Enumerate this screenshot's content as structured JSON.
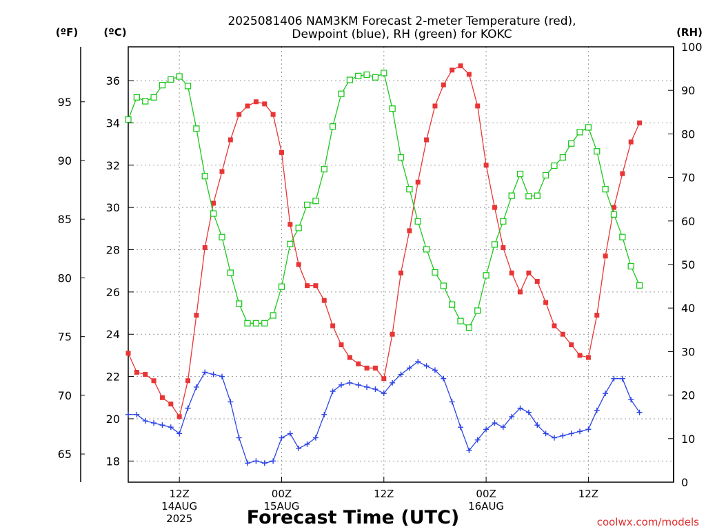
{
  "chart_data": {
    "type": "line",
    "title_line1": "2025081406 NAM3KM Forecast 2-meter Temperature (red),",
    "title_line2": "Dewpoint (blue), RH (green) for KOKC",
    "xlabel": "Forecast Time (UTC)",
    "credit": "coolwx.com/models",
    "x_hours": [
      6,
      7,
      8,
      9,
      10,
      11,
      12,
      13,
      14,
      15,
      16,
      17,
      18,
      19,
      20,
      21,
      22,
      23,
      24,
      25,
      26,
      27,
      28,
      29,
      30,
      31,
      32,
      33,
      34,
      35,
      36,
      37,
      38,
      39,
      40,
      41,
      42,
      43,
      44,
      45,
      46,
      47,
      48,
      49,
      50,
      51,
      52,
      53,
      54,
      55,
      56,
      57,
      58,
      59,
      60,
      61,
      62,
      63,
      64,
      65,
      66,
      67,
      68,
      69,
      70
    ],
    "x_range_hours": [
      6,
      70
    ],
    "x_ticks": [
      {
        "hour": 12,
        "lines": [
          "12Z",
          "14AUG",
          "2025"
        ]
      },
      {
        "hour": 24,
        "lines": [
          "00Z",
          "15AUG"
        ]
      },
      {
        "hour": 36,
        "lines": [
          "12Z"
        ]
      },
      {
        "hour": 48,
        "lines": [
          "00Z",
          "16AUG"
        ]
      },
      {
        "hour": 60,
        "lines": [
          "12Z"
        ]
      }
    ],
    "axes": {
      "celsius": {
        "label": "(ºC)",
        "range": [
          17.0,
          37.6
        ],
        "ticks": [
          18,
          20,
          22,
          24,
          26,
          28,
          30,
          32,
          34,
          36
        ]
      },
      "fahrenheit": {
        "label": "(ºF)",
        "ticks": [
          65,
          70,
          75,
          80,
          85,
          90,
          95
        ]
      },
      "rh": {
        "label": "(RH)",
        "range": [
          0,
          100
        ],
        "ticks": [
          0,
          10,
          20,
          30,
          40,
          50,
          60,
          70,
          80,
          90,
          100
        ]
      }
    },
    "grid": true,
    "series": [
      {
        "key": "temperature",
        "unit": "C",
        "color": "#e83535",
        "marker": "filled-square",
        "values": [
          23.1,
          22.2,
          22.1,
          21.8,
          21.0,
          20.7,
          20.1,
          21.8,
          24.9,
          28.1,
          30.2,
          31.7,
          33.2,
          34.4,
          34.8,
          35.0,
          34.9,
          34.4,
          32.6,
          29.2,
          27.3,
          26.3,
          26.3,
          25.6,
          24.4,
          23.5,
          22.9,
          22.6,
          22.4,
          22.4,
          21.9,
          24.0,
          26.9,
          28.9,
          31.2,
          33.2,
          34.8,
          35.8,
          36.5,
          36.7,
          36.3,
          34.8,
          32.0,
          30.0,
          28.1,
          26.9,
          26.0,
          26.9,
          26.5,
          25.5,
          24.4,
          24.0,
          23.5,
          23.0,
          22.9,
          24.9,
          27.7,
          30.0,
          31.6,
          33.1,
          34.0
        ]
      },
      {
        "key": "dewpoint",
        "unit": "C",
        "color": "#2b43e6",
        "marker": "plus",
        "values": [
          20.2,
          20.2,
          19.9,
          19.8,
          19.7,
          19.6,
          19.3,
          20.5,
          21.5,
          22.2,
          22.1,
          22.0,
          20.8,
          19.1,
          17.9,
          18.0,
          17.9,
          18.0,
          19.1,
          19.3,
          18.6,
          18.8,
          19.1,
          20.2,
          21.3,
          21.6,
          21.7,
          21.6,
          21.5,
          21.4,
          21.2,
          21.7,
          22.1,
          22.4,
          22.7,
          22.5,
          22.3,
          21.9,
          20.8,
          19.6,
          18.5,
          19.0,
          19.5,
          19.8,
          19.6,
          20.1,
          20.5,
          20.3,
          19.7,
          19.3,
          19.1,
          19.2,
          19.3,
          19.4,
          19.5,
          20.4,
          21.2,
          21.9,
          21.9,
          20.9,
          20.3
        ]
      },
      {
        "key": "rh",
        "unit": "%",
        "color": "#1ec81e",
        "marker": "open-square",
        "values": [
          83.3,
          88.4,
          87.5,
          88.4,
          91.2,
          92.5,
          93.2,
          91.0,
          81.2,
          70.3,
          61.7,
          56.3,
          48.1,
          41.0,
          36.5,
          36.5,
          36.5,
          38.3,
          44.9,
          54.7,
          58.4,
          63.7,
          64.6,
          71.9,
          81.7,
          89.2,
          92.4,
          93.3,
          93.6,
          93.0,
          94.0,
          85.8,
          74.6,
          67.3,
          59.9,
          53.5,
          48.2,
          45.1,
          40.8,
          37.0,
          35.5,
          39.4,
          47.5,
          54.6,
          59.9,
          65.8,
          70.8,
          65.7,
          65.8,
          70.5,
          72.7,
          74.6,
          77.8,
          80.4,
          81.5,
          76.0,
          67.3,
          61.5,
          56.3,
          49.6,
          45.2
        ]
      }
    ]
  }
}
